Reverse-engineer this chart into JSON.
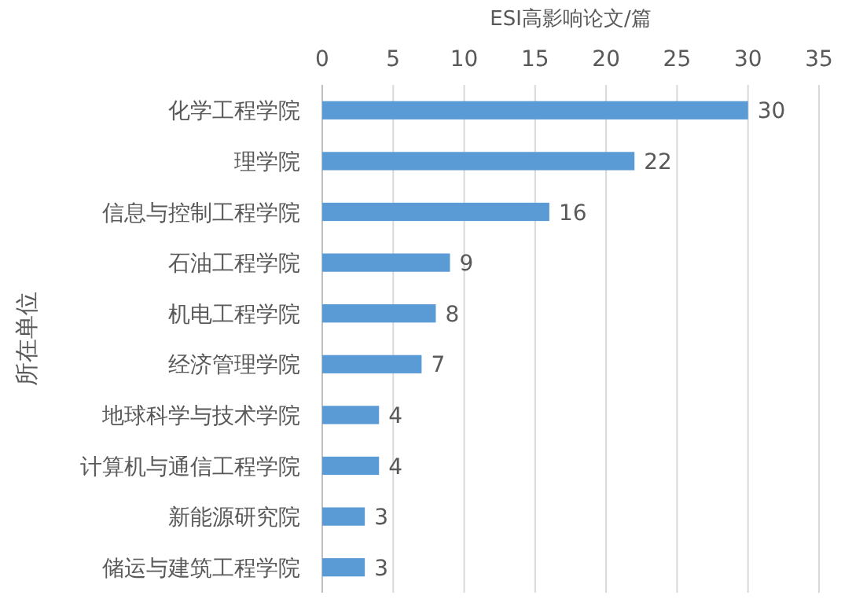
{
  "chart_data": {
    "type": "bar",
    "orientation": "horizontal",
    "xlabel": "ESI高影响论文/篇",
    "ylabel": "所在单位",
    "categories": [
      "化学工程学院",
      "理学院",
      "信息与控制工程学院",
      "石油工程学院",
      "机电工程学院",
      "经济管理学院",
      "地球科学与技术学院",
      "计算机与通信工程学院",
      "新能源研究院",
      "储运与建筑工程学院"
    ],
    "values": [
      30,
      22,
      16,
      9,
      8,
      7,
      4,
      4,
      3,
      3
    ],
    "color": "#5b9bd5",
    "xlim": [
      0,
      35
    ],
    "xticks": [
      0,
      5,
      10,
      15,
      20,
      25,
      30,
      35
    ],
    "grid": "x",
    "data_labels": true
  }
}
